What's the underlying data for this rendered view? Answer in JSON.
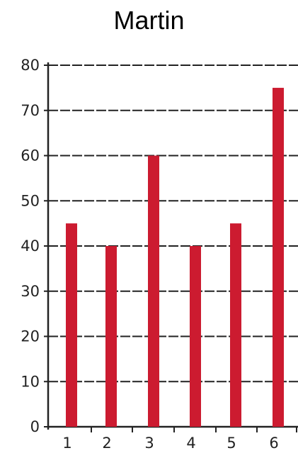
{
  "chart_data": {
    "type": "bar",
    "title": "Martin",
    "xlabel": "",
    "ylabel": "",
    "categories": [
      "1",
      "2",
      "3",
      "4",
      "5",
      "6"
    ],
    "values": [
      45,
      40,
      60,
      40,
      45,
      75
    ],
    "ylim": [
      0,
      80
    ],
    "yticks": [
      0,
      10,
      20,
      30,
      40,
      50,
      60,
      70,
      80
    ],
    "grid": true,
    "bar_color": "#cc1b30",
    "grid_color": "#222222"
  }
}
